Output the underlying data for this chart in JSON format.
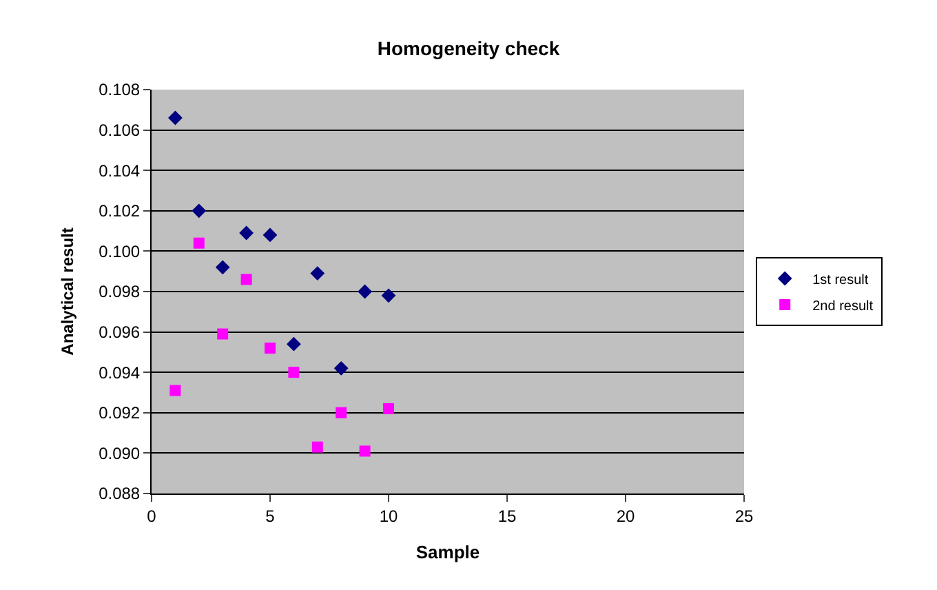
{
  "chart_data": {
    "type": "scatter",
    "title": "Homogeneity check",
    "xlabel": "Sample",
    "ylabel": "Analytical result",
    "x": [
      1,
      2,
      3,
      4,
      5,
      6,
      7,
      8,
      9,
      10
    ],
    "series": [
      {
        "name": "1st result",
        "color": "#000080",
        "marker": "diamond",
        "values": [
          0.1066,
          0.102,
          0.0992,
          0.1009,
          0.1008,
          0.0954,
          0.0989,
          0.0942,
          0.098,
          0.0978
        ]
      },
      {
        "name": "2nd result",
        "color": "#ff00ff",
        "marker": "square",
        "values": [
          0.0931,
          0.1004,
          0.0959,
          0.0986,
          0.0952,
          0.094,
          0.0903,
          0.092,
          0.0901,
          0.0922
        ]
      }
    ],
    "xlim": [
      0,
      25
    ],
    "xticks": [
      0,
      5,
      10,
      15,
      20,
      25
    ],
    "ylim": [
      0.088,
      0.108
    ],
    "yticks": [
      {
        "value": 0.088,
        "label": "0.088"
      },
      {
        "value": 0.09,
        "label": "0.090"
      },
      {
        "value": 0.092,
        "label": "0.092"
      },
      {
        "value": 0.094,
        "label": "0.094"
      },
      {
        "value": 0.096,
        "label": "0.096"
      },
      {
        "value": 0.098,
        "label": "0.098"
      },
      {
        "value": 0.1,
        "label": "0.100"
      },
      {
        "value": 0.102,
        "label": "0.102"
      },
      {
        "value": 0.104,
        "label": "0.104"
      },
      {
        "value": 0.106,
        "label": "0.106"
      },
      {
        "value": 0.108,
        "label": "0.108"
      }
    ],
    "grid": "y",
    "legend": "right"
  }
}
